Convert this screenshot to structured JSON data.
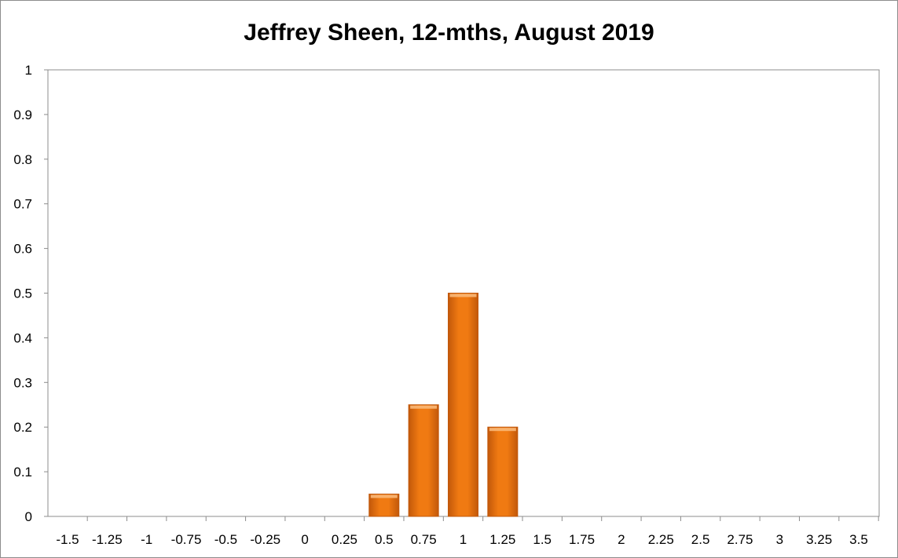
{
  "chart_data": {
    "type": "bar",
    "title": "Jeffrey Sheen, 12-mths, August 2019",
    "xlabel": "",
    "ylabel": "",
    "categories": [
      "-1.5",
      "-1.25",
      "-1",
      "-0.75",
      "-0.5",
      "-0.25",
      "0",
      "0.25",
      "0.5",
      "0.75",
      "1",
      "1.25",
      "1.5",
      "1.75",
      "2",
      "2.25",
      "2.5",
      "2.75",
      "3",
      "3.25",
      "3.5"
    ],
    "values": [
      0,
      0,
      0,
      0,
      0,
      0,
      0,
      0,
      0.05,
      0.25,
      0.5,
      0.2,
      0,
      0,
      0,
      0,
      0,
      0,
      0,
      0,
      0
    ],
    "ylim": [
      0,
      1
    ],
    "yticks": [
      "0",
      "0.1",
      "0.2",
      "0.3",
      "0.4",
      "0.5",
      "0.6",
      "0.7",
      "0.8",
      "0.9",
      "1"
    ],
    "grid": false,
    "legend": "none",
    "bar_color": "#f07a12",
    "bar_color_dark": "#c2580a",
    "bar_color_light": "#f9b878"
  }
}
